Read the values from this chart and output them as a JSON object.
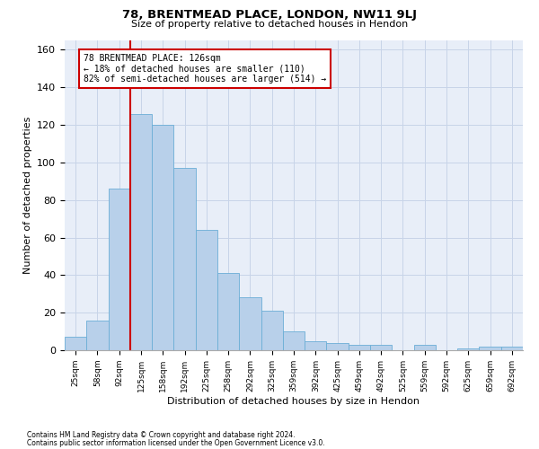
{
  "title": "78, BRENTMEAD PLACE, LONDON, NW11 9LJ",
  "subtitle": "Size of property relative to detached houses in Hendon",
  "xlabel": "Distribution of detached houses by size in Hendon",
  "ylabel": "Number of detached properties",
  "footnote1": "Contains HM Land Registry data © Crown copyright and database right 2024.",
  "footnote2": "Contains public sector information licensed under the Open Government Licence v3.0.",
  "categories": [
    "25sqm",
    "58sqm",
    "92sqm",
    "125sqm",
    "158sqm",
    "192sqm",
    "225sqm",
    "258sqm",
    "292sqm",
    "325sqm",
    "359sqm",
    "392sqm",
    "425sqm",
    "459sqm",
    "492sqm",
    "525sqm",
    "559sqm",
    "592sqm",
    "625sqm",
    "659sqm",
    "692sqm"
  ],
  "bar_heights": [
    7,
    16,
    86,
    126,
    120,
    97,
    64,
    41,
    28,
    21,
    10,
    5,
    4,
    3,
    3,
    0,
    3,
    0,
    1,
    2,
    2
  ],
  "bar_color": "#b8d0ea",
  "bar_edge_color": "#6baed6",
  "grid_color": "#c8d4e8",
  "background_color": "#e8eef8",
  "annotation_line1": "78 BRENTMEAD PLACE: 126sqm",
  "annotation_line2": "← 18% of detached houses are smaller (110)",
  "annotation_line3": "82% of semi-detached houses are larger (514) →",
  "annotation_box_color": "white",
  "annotation_box_edge_color": "#cc0000",
  "vline_color": "#cc0000",
  "vline_x_index": 3,
  "ylim": [
    0,
    165
  ],
  "yticks": [
    0,
    20,
    40,
    60,
    80,
    100,
    120,
    140,
    160
  ]
}
